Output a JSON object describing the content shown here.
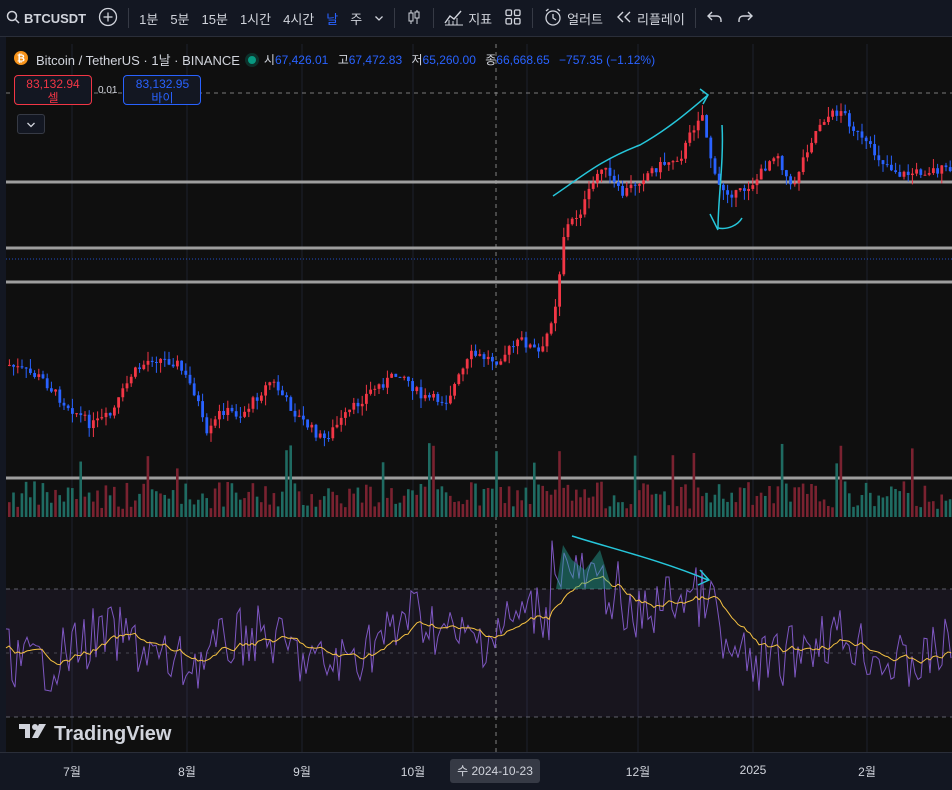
{
  "toolbar": {
    "symbol": "BTCUSDT",
    "add_icon": "plus-circle-icon",
    "timeframes": [
      "1분",
      "5분",
      "15분",
      "1시간",
      "4시간",
      "날",
      "주"
    ],
    "active_timeframe": "날",
    "indicators_label": "지표",
    "alert_label": "얼러트",
    "replay_label": "리플레이"
  },
  "legend": {
    "title": "Bitcoin / TetherUS · 1날 · BINANCE",
    "open_label": "시",
    "open": "67,426.01",
    "high_label": "고",
    "high": "67,472.83",
    "low_label": "저",
    "low": "65,260.00",
    "close_label": "종",
    "close": "66,668.65",
    "change": "−757.35 (−1.12%)"
  },
  "trade": {
    "sell_price": "83,132.94",
    "sell_label": "셀",
    "spread": "0.01",
    "buy_price": "83,132.95",
    "buy_label": "바이"
  },
  "branding": {
    "logo_text": "TradingView"
  },
  "xaxis": {
    "labels": [
      "7월",
      "8월",
      "9월",
      "10월",
      "12월",
      "2025",
      "2월"
    ],
    "crosshair_label": "수 2024-10-23"
  },
  "colors": {
    "up": "#f23645",
    "down": "#2962ff",
    "background": "#131722",
    "rsi_line": "#7e57c2",
    "rsi_ma": "#f5c242",
    "drawing": "#26c6da"
  }
}
